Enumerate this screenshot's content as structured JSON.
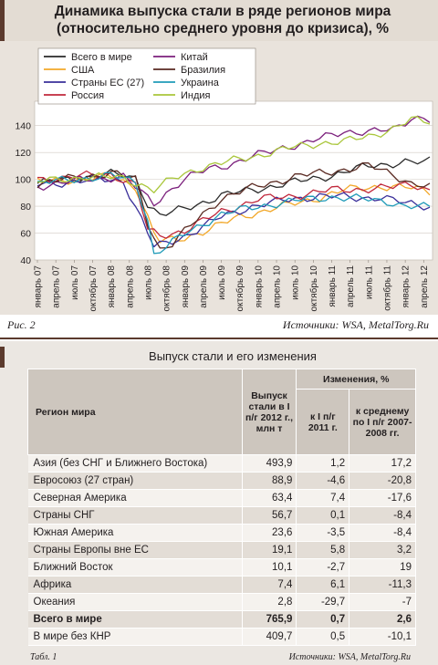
{
  "figure": {
    "title_line1": "Динамика выпуска стали в ряде регионов мира",
    "title_line2": "(относительно среднего уровня до кризиса), %",
    "label": "Рис. 2",
    "source": "Источники: WSA, MetalTorg.Ru"
  },
  "chart_data": {
    "type": "line",
    "ylim": [
      40,
      150
    ],
    "yticks": [
      40,
      60,
      80,
      100,
      120,
      140
    ],
    "grid": "horizontal",
    "legend_placement": "top-left",
    "x_tick_labels": [
      "январь 07",
      "апрель 07",
      "июль 07",
      "октябрь 07",
      "январь 08",
      "апрель 08",
      "июль 08",
      "октябрь 08",
      "январь 09",
      "апрель 09",
      "июль 09",
      "октябрь 09",
      "январь 10",
      "апрель 10",
      "июль 10",
      "октябрь 10",
      "январь 11",
      "апрель 11",
      "июль 11",
      "октябрь 11",
      "январь 12",
      "апрель 12"
    ],
    "series": [
      {
        "name": "Всего в мире",
        "color": "#2a2a2a",
        "anchors": [
          [
            0,
            97
          ],
          [
            12,
            104
          ],
          [
            16,
            101
          ],
          [
            18,
            82
          ],
          [
            20,
            73
          ],
          [
            24,
            78
          ],
          [
            30,
            88
          ],
          [
            36,
            93
          ],
          [
            42,
            98
          ],
          [
            48,
            103
          ],
          [
            54,
            110
          ],
          [
            60,
            113
          ],
          [
            63,
            112
          ],
          [
            64,
            114
          ]
        ]
      },
      {
        "name": "США",
        "color": "#f2a82a",
        "anchors": [
          [
            0,
            98
          ],
          [
            12,
            102
          ],
          [
            16,
            95
          ],
          [
            19,
            60
          ],
          [
            20,
            54
          ],
          [
            23,
            55
          ],
          [
            28,
            63
          ],
          [
            33,
            72
          ],
          [
            38,
            78
          ],
          [
            44,
            84
          ],
          [
            50,
            92
          ],
          [
            56,
            95
          ],
          [
            60,
            94
          ],
          [
            64,
            91
          ]
        ]
      },
      {
        "name": "Страны ЕС (27)",
        "color": "#3a2f9a",
        "anchors": [
          [
            0,
            96
          ],
          [
            10,
            100
          ],
          [
            14,
            99
          ],
          [
            17,
            70
          ],
          [
            19,
            50
          ],
          [
            21,
            52
          ],
          [
            25,
            60
          ],
          [
            30,
            72
          ],
          [
            35,
            80
          ],
          [
            40,
            84
          ],
          [
            46,
            88
          ],
          [
            52,
            86
          ],
          [
            56,
            87
          ],
          [
            60,
            82
          ],
          [
            64,
            80
          ]
        ]
      },
      {
        "name": "Россия",
        "color": "#c0283c",
        "anchors": [
          [
            0,
            100
          ],
          [
            12,
            104
          ],
          [
            16,
            96
          ],
          [
            18,
            62
          ],
          [
            20,
            58
          ],
          [
            24,
            62
          ],
          [
            30,
            76
          ],
          [
            36,
            85
          ],
          [
            42,
            88
          ],
          [
            48,
            92
          ],
          [
            54,
            93
          ],
          [
            58,
            94
          ],
          [
            61,
            97
          ],
          [
            64,
            92
          ]
        ]
      },
      {
        "name": "Китай",
        "color": "#7b1f7c",
        "anchors": [
          [
            0,
            95
          ],
          [
            8,
            100
          ],
          [
            14,
            102
          ],
          [
            17,
            90
          ],
          [
            19,
            82
          ],
          [
            21,
            90
          ],
          [
            24,
            100
          ],
          [
            28,
            108
          ],
          [
            32,
            112
          ],
          [
            36,
            118
          ],
          [
            40,
            124
          ],
          [
            44,
            127
          ],
          [
            50,
            136
          ],
          [
            54,
            135
          ],
          [
            58,
            137
          ],
          [
            61,
            146
          ],
          [
            63,
            146
          ],
          [
            64,
            144
          ]
        ]
      },
      {
        "name": "Бразилия",
        "color": "#5a2a22",
        "anchors": [
          [
            0,
            97
          ],
          [
            12,
            105
          ],
          [
            16,
            100
          ],
          [
            18,
            68
          ],
          [
            20,
            48
          ],
          [
            22,
            52
          ],
          [
            26,
            70
          ],
          [
            30,
            86
          ],
          [
            36,
            95
          ],
          [
            42,
            102
          ],
          [
            48,
            106
          ],
          [
            54,
            110
          ],
          [
            58,
            104
          ],
          [
            61,
            97
          ],
          [
            64,
            94
          ]
        ]
      },
      {
        "name": "Украина",
        "color": "#1f9bb8",
        "anchors": [
          [
            0,
            97
          ],
          [
            12,
            103
          ],
          [
            16,
            98
          ],
          [
            18,
            70
          ],
          [
            19,
            44
          ],
          [
            21,
            50
          ],
          [
            25,
            62
          ],
          [
            30,
            74
          ],
          [
            36,
            80
          ],
          [
            42,
            84
          ],
          [
            48,
            87
          ],
          [
            54,
            85
          ],
          [
            58,
            83
          ],
          [
            60,
            80
          ],
          [
            64,
            79
          ]
        ]
      },
      {
        "name": "Индия",
        "color": "#a9c63a",
        "anchors": [
          [
            0,
            98
          ],
          [
            8,
            102
          ],
          [
            14,
            101
          ],
          [
            17,
            96
          ],
          [
            19,
            92
          ],
          [
            22,
            100
          ],
          [
            26,
            108
          ],
          [
            30,
            112
          ],
          [
            34,
            116
          ],
          [
            38,
            120
          ],
          [
            42,
            124
          ],
          [
            46,
            127
          ],
          [
            50,
            128
          ],
          [
            54,
            132
          ],
          [
            58,
            138
          ],
          [
            61,
            144
          ],
          [
            64,
            143
          ]
        ]
      }
    ]
  },
  "table": {
    "title": "Выпуск стали и его изменения",
    "col_region": "Регион мира",
    "col_output": "Выпуск стали в I п/г 2012 г., млн т",
    "col_changes": "Изменения, %",
    "col_vs_2011": "к I п/г 2011 г.",
    "col_vs_avg": "к среднему по I п/г 2007-2008 гг.",
    "rows": [
      {
        "region": "Азия (без СНГ и Ближнего Востока)",
        "output": "493,9",
        "vs_2011": "1,2",
        "vs_avg": "17,2"
      },
      {
        "region": "Евросоюз (27 стран)",
        "output": "88,9",
        "vs_2011": "-4,6",
        "vs_avg": "-20,8"
      },
      {
        "region": "Северная Америка",
        "output": "63,4",
        "vs_2011": "7,4",
        "vs_avg": "-17,6"
      },
      {
        "region": "Страны СНГ",
        "output": "56,7",
        "vs_2011": "0,1",
        "vs_avg": "-8,4"
      },
      {
        "region": "Южная Америка",
        "output": "23,6",
        "vs_2011": "-3,5",
        "vs_avg": "-8,4"
      },
      {
        "region": "Страны Европы вне ЕС",
        "output": "19,1",
        "vs_2011": "5,8",
        "vs_avg": "3,2"
      },
      {
        "region": "Ближний Восток",
        "output": "10,1",
        "vs_2011": "-2,7",
        "vs_avg": "19"
      },
      {
        "region": "Африка",
        "output": "7,4",
        "vs_2011": "6,1",
        "vs_avg": "-11,3"
      },
      {
        "region": "Океания",
        "output": "2,8",
        "vs_2011": "-29,7",
        "vs_avg": "-7"
      },
      {
        "region": "Всего в мире",
        "output": "765,9",
        "vs_2011": "0,7",
        "vs_avg": "2,6"
      },
      {
        "region": "В мире без КНР",
        "output": "409,7",
        "vs_2011": "0,5",
        "vs_avg": "-10,1"
      }
    ],
    "label": "Табл. 1",
    "source": "Источники: WSA, MetalTorg.Ru"
  }
}
